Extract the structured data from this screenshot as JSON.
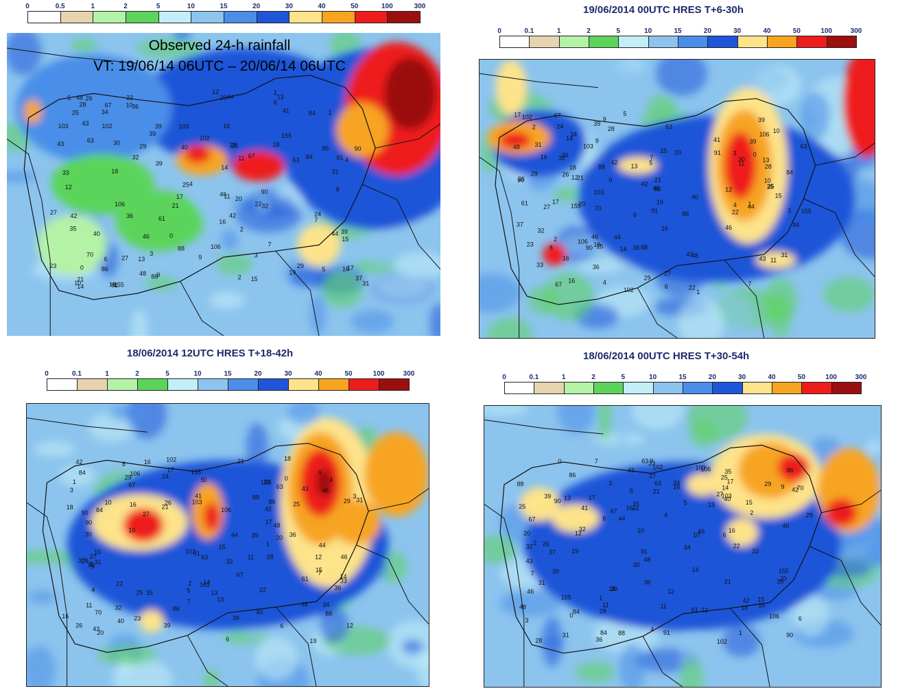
{
  "legend": {
    "levels_a": [
      "0",
      "0.5",
      "1",
      "2",
      "5",
      "10",
      "15",
      "20",
      "30",
      "40",
      "50",
      "100",
      "300"
    ],
    "levels_b": [
      "0",
      "0.1",
      "1",
      "2",
      "5",
      "10",
      "15",
      "20",
      "30",
      "40",
      "50",
      "100",
      "300"
    ],
    "colors": [
      "#ffffff",
      "#e8d3b0",
      "#b4f2a6",
      "#5cd45c",
      "#c2eef7",
      "#8cc4ee",
      "#4a8ee8",
      "#1f55d8",
      "#fde38a",
      "#f7a420",
      "#ee1c1c",
      "#9b0f0f"
    ]
  },
  "panels": {
    "observed": {
      "caption_line1": "Observed 24-h rainfall",
      "caption_line2": "VT: 19/06/14 06UTC – 20/06/14 06UTC"
    },
    "hres_6_30": {
      "title": "19/06/2014 00UTC HRES T+6-30h"
    },
    "hres_18_42": {
      "title": "18/06/2014 12UTC HRES T+18-42h"
    },
    "hres_30_54": {
      "title": "18/06/2014 00UTC HRES T+30-54h"
    }
  },
  "station_values": [
    "18",
    "16",
    "42",
    "39",
    "15",
    "20",
    "26",
    "86",
    "11",
    "22",
    "9",
    "4",
    "7",
    "1",
    "16",
    "27",
    "13",
    "91",
    "106",
    "88",
    "155",
    "90",
    "103",
    "102",
    "84",
    "67",
    "63",
    "48",
    "21",
    "17",
    "40",
    "43",
    "39",
    "46",
    "44",
    "36",
    "31",
    "29",
    "12",
    "10",
    "28",
    "25",
    "6",
    "5",
    "3",
    "2",
    "0",
    "14",
    "32",
    "23",
    "19",
    "41",
    "35",
    "37",
    "70",
    "8",
    "33",
    "34",
    "24",
    "61",
    "30"
  ]
}
